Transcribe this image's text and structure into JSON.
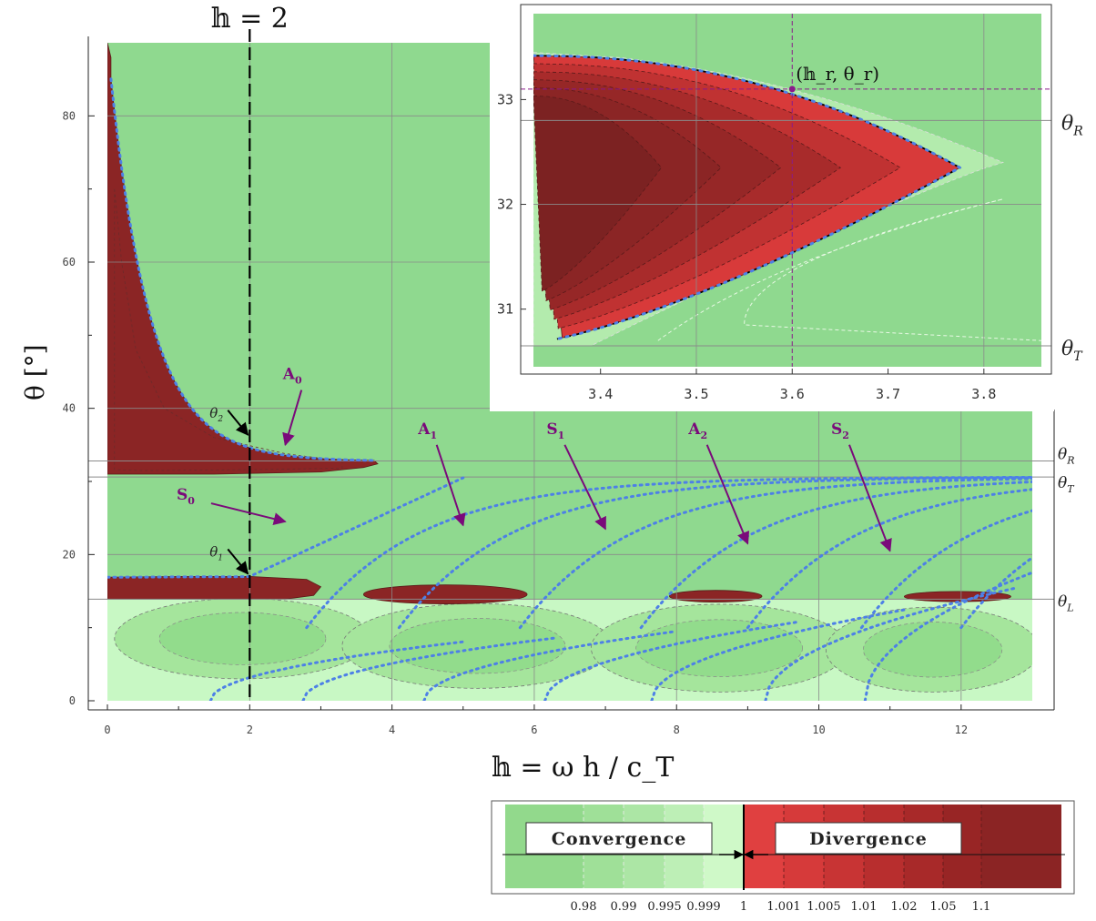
{
  "chart_data": {
    "type": "heatmap",
    "main": {
      "xlabel": "𝕙 = ω h / c_T",
      "ylabel": "θ [°]",
      "xlim": [
        0,
        13
      ],
      "ylim": [
        0,
        90
      ],
      "x_ticks": [
        "0",
        "2",
        "4",
        "6",
        "8",
        "10",
        "12"
      ],
      "y_ticks": [
        "0",
        "20",
        "40",
        "60",
        "80"
      ],
      "grid": true,
      "reference_lines": [
        {
          "label": "θ_R",
          "axis": "y",
          "value": 32.8
        },
        {
          "label": "θ_T",
          "axis": "y",
          "value": 30.6
        },
        {
          "label": "θ_L",
          "axis": "y",
          "value": 13.9
        },
        {
          "label": "𝕙 = 2",
          "axis": "x",
          "value": 2
        }
      ],
      "mode_labels": [
        {
          "label": "A",
          "sub": "0",
          "x": 2.6,
          "y": 44
        },
        {
          "label": "S",
          "sub": "0",
          "x": 1.1,
          "y": 27.5
        },
        {
          "label": "A",
          "sub": "1",
          "x": 4.5,
          "y": 36.5
        },
        {
          "label": "S",
          "sub": "1",
          "x": 6.3,
          "y": 36.5
        },
        {
          "label": "A",
          "sub": "2",
          "x": 8.3,
          "y": 36.5
        },
        {
          "label": "S",
          "sub": "2",
          "x": 10.3,
          "y": 36.5
        }
      ],
      "angle_markers": [
        {
          "label": "θ",
          "sub": "2",
          "x": 2,
          "y": 36
        },
        {
          "label": "θ",
          "sub": "1",
          "x": 2,
          "y": 17
        }
      ]
    },
    "inset": {
      "xlim": [
        3.33,
        3.86
      ],
      "ylim": [
        30.45,
        33.82
      ],
      "x_ticks": [
        "3.4",
        "3.5",
        "3.6",
        "3.7",
        "3.8"
      ],
      "y_ticks": [
        "31",
        "32",
        "33"
      ],
      "point": {
        "label": "(𝕙_r, θ_r)",
        "x": 3.6,
        "y": 33.1
      },
      "reference_lines": [
        {
          "label": "θ_R",
          "axis": "y",
          "value": 32.8
        },
        {
          "label": "θ_T",
          "axis": "y",
          "value": 30.65
        }
      ]
    },
    "colorbar": {
      "levels": [
        "0.98",
        "0.99",
        "0.995",
        "0.999",
        "1",
        "1.001",
        "1.005",
        "1.01",
        "1.02",
        "1.05",
        "1.1"
      ],
      "convergence_label": "Convergence",
      "divergence_label": "Divergence"
    },
    "colors": {
      "green_background": "#8fd98f",
      "green_light": "#c8f8c4",
      "divergence_dark": "#8b2525",
      "mode_curve": "#4d80e6",
      "annotation": "#7a0a7a"
    }
  }
}
